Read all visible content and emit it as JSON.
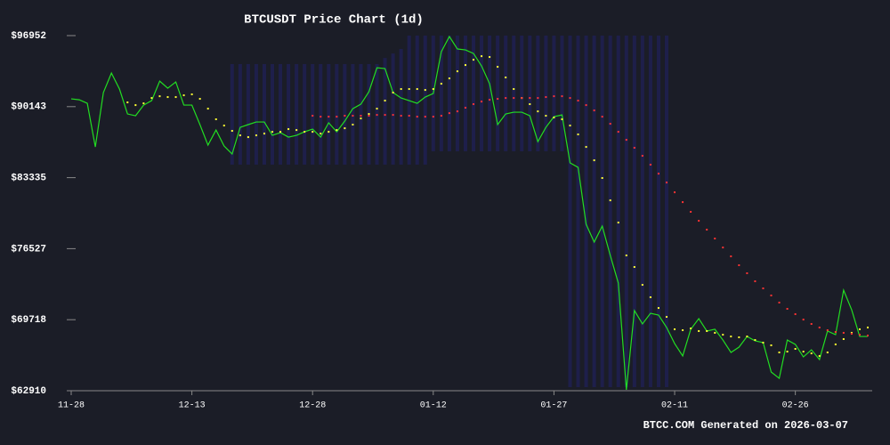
{
  "chart_data": {
    "type": "line",
    "title": "BTCUSDT Price Chart (1d)",
    "footer": "BTCC.COM Generated on 2026-03-07",
    "x": [
      "11-28",
      "11-29",
      "11-30",
      "12-01",
      "12-02",
      "12-03",
      "12-04",
      "12-05",
      "12-06",
      "12-07",
      "12-08",
      "12-09",
      "12-10",
      "12-11",
      "12-12",
      "12-13",
      "12-14",
      "12-15",
      "12-16",
      "12-17",
      "12-18",
      "12-19",
      "12-20",
      "12-21",
      "12-22",
      "12-23",
      "12-24",
      "12-25",
      "12-26",
      "12-27",
      "12-28",
      "12-29",
      "12-30",
      "12-31",
      "01-01",
      "01-02",
      "01-03",
      "01-04",
      "01-05",
      "01-06",
      "01-07",
      "01-08",
      "01-09",
      "01-10",
      "01-11",
      "01-12",
      "01-13",
      "01-14",
      "01-15",
      "01-16",
      "01-17",
      "01-18",
      "01-19",
      "01-20",
      "01-21",
      "01-22",
      "01-23",
      "01-24",
      "01-25",
      "01-26",
      "01-27",
      "01-28",
      "01-29",
      "01-30",
      "01-31",
      "02-01",
      "02-02",
      "02-03",
      "02-04",
      "02-05",
      "02-06",
      "02-07",
      "02-08",
      "02-09",
      "02-10",
      "02-11",
      "02-12",
      "02-13",
      "02-14",
      "02-15",
      "02-16",
      "02-17",
      "02-18",
      "02-19",
      "02-20",
      "02-21",
      "02-22",
      "02-23",
      "02-24",
      "02-25",
      "02-26",
      "02-27",
      "02-28",
      "03-01",
      "03-02",
      "03-03",
      "03-04",
      "03-05",
      "03-06",
      "03-07"
    ],
    "xticks": [
      "11-28",
      "12-13",
      "12-28",
      "01-12",
      "01-27",
      "02-11",
      "02-26"
    ],
    "ylim": [
      62910,
      96952
    ],
    "yticks": [
      {
        "value": 62910,
        "label": "$62910"
      },
      {
        "value": 69718,
        "label": "$69718"
      },
      {
        "value": 76527,
        "label": "$76527"
      },
      {
        "value": 83335,
        "label": "$83335"
      },
      {
        "value": 90143,
        "label": "$90143"
      },
      {
        "value": 96952,
        "label": "$96952"
      }
    ],
    "bands": {
      "color": "#22226a",
      "upper": [
        null,
        null,
        null,
        null,
        null,
        null,
        null,
        null,
        null,
        null,
        null,
        null,
        null,
        null,
        null,
        null,
        null,
        null,
        null,
        null,
        94220,
        94220,
        94220,
        94220,
        94220,
        94220,
        94220,
        94220,
        94220,
        94220,
        94220,
        94220,
        94220,
        94220,
        94220,
        94220,
        94220,
        94220,
        94220,
        94810,
        95240,
        95670,
        96950,
        96950,
        96950,
        96950,
        96950,
        96950,
        96950,
        96950,
        96950,
        96950,
        96950,
        96950,
        96950,
        96950,
        96950,
        96950,
        96950,
        96950,
        96950,
        96950,
        96950,
        96950,
        96950,
        96950,
        96950,
        96950,
        96950,
        96950,
        96950,
        96950,
        96950,
        96950,
        96950,
        null,
        null,
        null,
        null,
        null,
        null,
        null,
        null,
        null,
        null,
        null,
        null,
        null,
        null,
        null,
        null,
        null,
        null,
        null,
        null,
        null,
        null,
        null,
        null,
        null
      ],
      "lower": [
        null,
        null,
        null,
        null,
        null,
        null,
        null,
        null,
        null,
        null,
        null,
        null,
        null,
        null,
        null,
        null,
        null,
        null,
        null,
        null,
        84580,
        84580,
        84580,
        84580,
        84580,
        84580,
        84580,
        84580,
        84580,
        84580,
        84580,
        84580,
        84580,
        84580,
        84580,
        84580,
        84580,
        84580,
        84580,
        84580,
        84580,
        84580,
        84580,
        84580,
        84580,
        85860,
        85860,
        85860,
        85860,
        85860,
        85860,
        85860,
        85860,
        85860,
        85860,
        85860,
        85860,
        85860,
        85860,
        85860,
        85860,
        85860,
        63250,
        63250,
        63250,
        63250,
        63250,
        63250,
        63250,
        63250,
        63250,
        63250,
        63250,
        63250,
        63250,
        null,
        null,
        null,
        null,
        null,
        null,
        null,
        null,
        null,
        null,
        null,
        null,
        null,
        null,
        null,
        null,
        null,
        null,
        null,
        null,
        null,
        null,
        null,
        null,
        null
      ]
    },
    "series": [
      {
        "color": "#22dd22",
        "style": "line",
        "values": [
          90890,
          90800,
          90460,
          86280,
          91490,
          93360,
          91830,
          89440,
          89270,
          90290,
          90720,
          92590,
          91910,
          92510,
          90290,
          90290,
          88420,
          86450,
          87900,
          86370,
          85600,
          88160,
          88420,
          88670,
          88670,
          87390,
          87650,
          87220,
          87390,
          87730,
          87990,
          87220,
          88590,
          87730,
          88760,
          89950,
          90380,
          91570,
          93870,
          93790,
          91490,
          90970,
          90720,
          90460,
          91060,
          91400,
          95410,
          96860,
          95670,
          95580,
          95240,
          94040,
          92340,
          88420,
          89440,
          89610,
          89610,
          89270,
          86790,
          88160,
          89180,
          89350,
          84750,
          84320,
          78860,
          77160,
          78690,
          75880,
          73230,
          63000,
          70590,
          69310,
          70330,
          70160,
          68970,
          67430,
          66240,
          68800,
          69820,
          68630,
          68800,
          67770,
          66580,
          67090,
          68110,
          67690,
          67520,
          64700,
          64100,
          67770,
          67350,
          66150,
          66830,
          65900,
          68630,
          68280,
          72550,
          70670,
          68110,
          68110
        ]
      },
      {
        "color": "#ffff33",
        "style": "dots",
        "values": [
          null,
          null,
          null,
          null,
          null,
          null,
          null,
          90550,
          90290,
          90460,
          90970,
          91140,
          91060,
          91060,
          91230,
          91320,
          90890,
          89950,
          88930,
          88330,
          87820,
          87390,
          87220,
          87390,
          87560,
          87730,
          87730,
          87990,
          87900,
          87730,
          87730,
          87560,
          87730,
          87900,
          88070,
          88420,
          89010,
          89440,
          89950,
          90720,
          91490,
          91830,
          91830,
          91830,
          91740,
          91830,
          92340,
          92850,
          93530,
          94130,
          94640,
          94980,
          94900,
          93960,
          92940,
          91830,
          90970,
          90380,
          89690,
          89270,
          89100,
          88930,
          88330,
          87480,
          86280,
          85000,
          83300,
          81160,
          79030,
          75880,
          74770,
          73060,
          71870,
          70840,
          69990,
          68800,
          68710,
          68880,
          68630,
          68630,
          68460,
          68280,
          68110,
          68030,
          68110,
          67770,
          67520,
          67260,
          66580,
          66660,
          66920,
          66660,
          66490,
          66240,
          66580,
          67350,
          67860,
          68460,
          68800,
          68970
        ]
      },
      {
        "color": "#ff3333",
        "style": "dots",
        "values": [
          null,
          null,
          null,
          null,
          null,
          null,
          null,
          null,
          null,
          null,
          null,
          null,
          null,
          null,
          null,
          null,
          null,
          null,
          null,
          null,
          null,
          null,
          null,
          null,
          null,
          null,
          null,
          null,
          null,
          null,
          89270,
          89180,
          89180,
          89180,
          89270,
          89270,
          89270,
          89270,
          89350,
          89350,
          89350,
          89270,
          89270,
          89180,
          89180,
          89180,
          89270,
          89520,
          89690,
          90040,
          90380,
          90630,
          90800,
          90890,
          90970,
          90970,
          90970,
          90970,
          90970,
          91060,
          91140,
          91140,
          90970,
          90720,
          90290,
          89780,
          89180,
          88500,
          87730,
          86960,
          86200,
          85430,
          84580,
          83720,
          82870,
          81930,
          80990,
          80060,
          79200,
          78350,
          77500,
          76640,
          75790,
          74940,
          74170,
          73400,
          72720,
          72040,
          71360,
          70760,
          70250,
          69730,
          69310,
          68970,
          68710,
          68540,
          68460,
          68370,
          68280,
          68200
        ]
      }
    ]
  }
}
